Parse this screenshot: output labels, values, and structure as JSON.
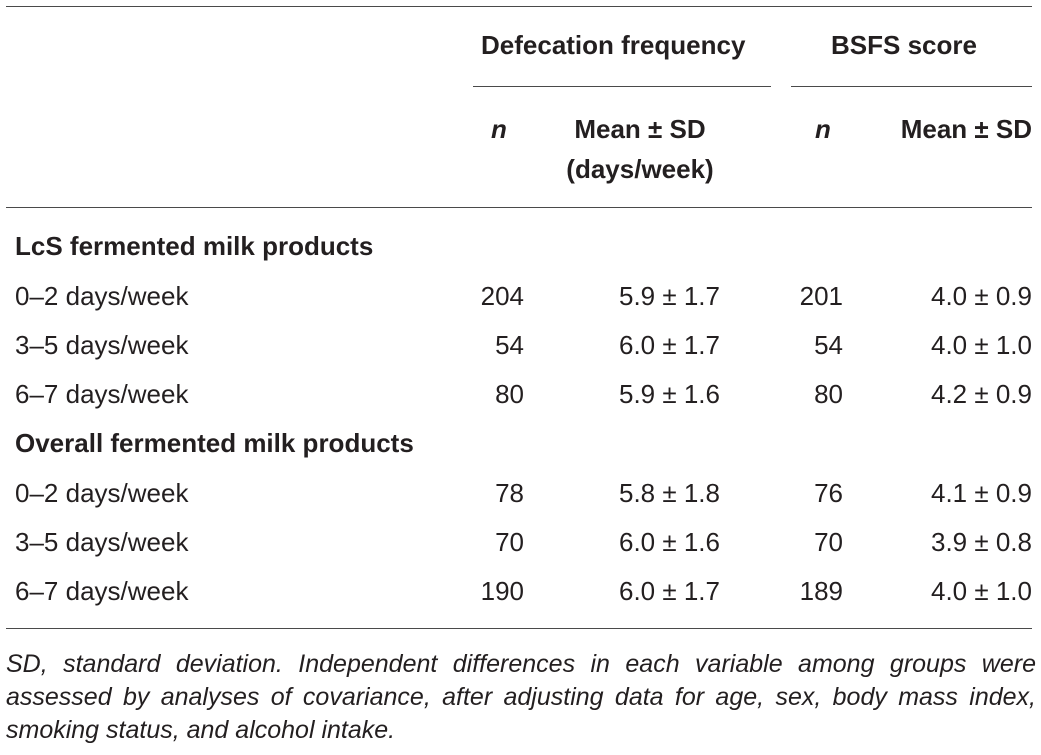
{
  "table": {
    "group_headers": {
      "defecation": "Defecation frequency",
      "bsfs": "BSFS score"
    },
    "column_headers": {
      "n1": "n",
      "mean_freq_line1": "Mean ± SD",
      "mean_freq_line2": "(days/week)",
      "n2": "n",
      "mean_bsfs": "Mean ± SD"
    },
    "sections": [
      {
        "title": "LcS fermented milk products",
        "rows": [
          {
            "label": "0–2 days/week",
            "n_freq": "204",
            "mean_freq": "5.9 ± 1.7",
            "n_bsfs": "201",
            "mean_bsfs": "4.0 ± 0.9"
          },
          {
            "label": "3–5 days/week",
            "n_freq": "54",
            "mean_freq": "6.0 ± 1.7",
            "n_bsfs": "54",
            "mean_bsfs": "4.0 ± 1.0"
          },
          {
            "label": "6–7 days/week",
            "n_freq": "80",
            "mean_freq": "5.9 ± 1.6",
            "n_bsfs": "80",
            "mean_bsfs": "4.2 ± 0.9"
          }
        ]
      },
      {
        "title": "Overall fermented milk products",
        "rows": [
          {
            "label": "0–2 days/week",
            "n_freq": "78",
            "mean_freq": "5.8 ± 1.8",
            "n_bsfs": "76",
            "mean_bsfs": "4.1 ± 0.9"
          },
          {
            "label": "3–5 days/week",
            "n_freq": "70",
            "mean_freq": "6.0 ± 1.6",
            "n_bsfs": "70",
            "mean_bsfs": "3.9 ± 0.8"
          },
          {
            "label": "6–7 days/week",
            "n_freq": "190",
            "mean_freq": "6.0 ± 1.7",
            "n_bsfs": "189",
            "mean_bsfs": "4.0 ± 1.0"
          }
        ]
      }
    ],
    "footnote": "SD, standard deviation. Independent differences in each variable among groups were assessed by analyses of covariance, after adjusting data for age, sex, body mass index, smoking status, and alcohol intake."
  }
}
